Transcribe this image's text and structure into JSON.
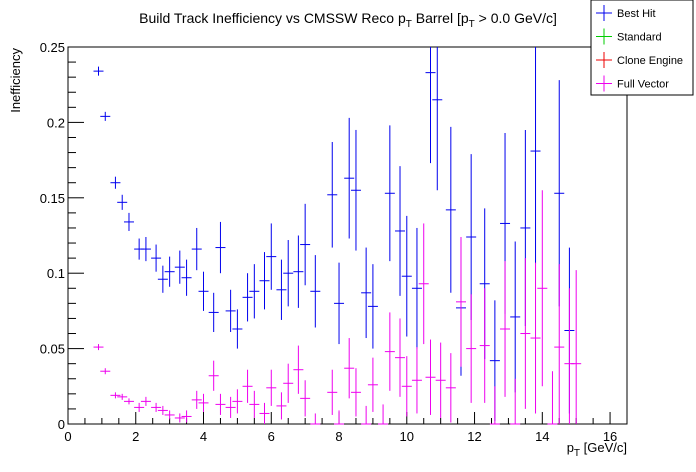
{
  "chart_data": {
    "type": "scatter",
    "title": {
      "main": "Build Track Inefficiency vs CMSSW Reco p",
      "sub1": "T",
      "mid": " Barrel [p",
      "sub2": "T",
      "end": " > 0.0 GeV/c]"
    },
    "xlabel": {
      "main": "p",
      "sub": "T",
      "unit": " [GeV/c]"
    },
    "ylabel": "Inefficiency",
    "xlim": [
      0,
      16.5
    ],
    "ylim": [
      0,
      0.25
    ],
    "xticks": [
      0,
      2,
      4,
      6,
      8,
      10,
      12,
      14,
      16
    ],
    "xtick_labels": [
      "0",
      "2",
      "4",
      "6",
      "8",
      "10",
      "12",
      "14",
      "16"
    ],
    "yticks": [
      0,
      0.05,
      0.1,
      0.15,
      0.2,
      0.25
    ],
    "ytick_labels": [
      "0",
      "0.05",
      "0.1",
      "0.15",
      "0.2",
      "0.25"
    ],
    "legend": [
      {
        "name": "Best Hit",
        "color": "#0000ee"
      },
      {
        "name": "Standard",
        "color": "#00cc00"
      },
      {
        "name": "Clone Engine",
        "color": "#ee0000"
      },
      {
        "name": "Full Vector",
        "color": "#ee00ee"
      }
    ],
    "legend_position": "top-right",
    "series": [
      {
        "name": "Best Hit",
        "color": "#0000ee",
        "points": [
          [
            0.9,
            0.234,
            0.003
          ],
          [
            1.1,
            0.204,
            0.003
          ],
          [
            1.4,
            0.16,
            0.004
          ],
          [
            1.6,
            0.147,
            0.005
          ],
          [
            1.8,
            0.134,
            0.006
          ],
          [
            2.1,
            0.116,
            0.007
          ],
          [
            2.3,
            0.116,
            0.008
          ],
          [
            2.6,
            0.11,
            0.009
          ],
          [
            2.8,
            0.096,
            0.009
          ],
          [
            3.0,
            0.101,
            0.01
          ],
          [
            3.3,
            0.104,
            0.011
          ],
          [
            3.5,
            0.097,
            0.012
          ],
          [
            3.8,
            0.116,
            0.014
          ],
          [
            4.0,
            0.088,
            0.013
          ],
          [
            4.3,
            0.074,
            0.013
          ],
          [
            4.5,
            0.117,
            0.017
          ],
          [
            4.8,
            0.075,
            0.014
          ],
          [
            5.0,
            0.063,
            0.013
          ],
          [
            5.3,
            0.084,
            0.016
          ],
          [
            5.5,
            0.088,
            0.018
          ],
          [
            5.8,
            0.095,
            0.019
          ],
          [
            6.0,
            0.111,
            0.022
          ],
          [
            6.3,
            0.089,
            0.02
          ],
          [
            6.5,
            0.1,
            0.022
          ],
          [
            6.8,
            0.101,
            0.024
          ],
          [
            7.0,
            0.119,
            0.027
          ],
          [
            7.3,
            0.088,
            0.024
          ],
          [
            7.8,
            0.152,
            0.035
          ],
          [
            8.0,
            0.08,
            0.027
          ],
          [
            8.3,
            0.163,
            0.04
          ],
          [
            8.5,
            0.155,
            0.04
          ],
          [
            8.8,
            0.087,
            0.03
          ],
          [
            9.0,
            0.078,
            0.028
          ],
          [
            9.5,
            0.153,
            0.045
          ],
          [
            9.8,
            0.128,
            0.043
          ],
          [
            10.0,
            0.098,
            0.04
          ],
          [
            10.3,
            0.09,
            0.04
          ],
          [
            10.7,
            0.233,
            0.06
          ],
          [
            10.9,
            0.215,
            0.06
          ],
          [
            11.3,
            0.142,
            0.055
          ],
          [
            11.6,
            0.077,
            0.045
          ],
          [
            11.9,
            0.124,
            0.055
          ],
          [
            12.3,
            0.093,
            0.05
          ],
          [
            12.6,
            0.042,
            0.04
          ],
          [
            12.9,
            0.133,
            0.06
          ],
          [
            13.2,
            0.071,
            0.05
          ],
          [
            13.5,
            0.13,
            0.065
          ],
          [
            13.8,
            0.181,
            0.075
          ],
          [
            14.5,
            0.153,
            0.075
          ],
          [
            14.8,
            0.062,
            0.055
          ]
        ]
      },
      {
        "name": "Full Vector",
        "color": "#ee00ee",
        "points": [
          [
            0.9,
            0.051,
            0.002
          ],
          [
            1.1,
            0.035,
            0.002
          ],
          [
            1.4,
            0.019,
            0.002
          ],
          [
            1.6,
            0.018,
            0.002
          ],
          [
            1.8,
            0.015,
            0.002
          ],
          [
            2.1,
            0.011,
            0.003
          ],
          [
            2.3,
            0.015,
            0.003
          ],
          [
            2.6,
            0.011,
            0.003
          ],
          [
            2.8,
            0.009,
            0.003
          ],
          [
            3.0,
            0.006,
            0.003
          ],
          [
            3.3,
            0.004,
            0.003
          ],
          [
            3.5,
            0.005,
            0.004
          ],
          [
            3.8,
            0.016,
            0.006
          ],
          [
            4.0,
            0.014,
            0.006
          ],
          [
            4.3,
            0.032,
            0.01
          ],
          [
            4.5,
            0.013,
            0.007
          ],
          [
            4.8,
            0.011,
            0.007
          ],
          [
            5.0,
            0.015,
            0.008
          ],
          [
            5.3,
            0.025,
            0.011
          ],
          [
            5.5,
            0.013,
            0.009
          ],
          [
            5.8,
            0.007,
            0.007
          ],
          [
            6.0,
            0.024,
            0.012
          ],
          [
            6.3,
            0.012,
            0.009
          ],
          [
            6.5,
            0.027,
            0.013
          ],
          [
            6.8,
            0.036,
            0.016
          ],
          [
            7.0,
            0.017,
            0.012
          ],
          [
            7.3,
            0.0,
            0.007
          ],
          [
            7.8,
            0.021,
            0.015
          ],
          [
            8.0,
            0.0,
            0.009
          ],
          [
            8.3,
            0.037,
            0.02
          ],
          [
            8.5,
            0.021,
            0.016
          ],
          [
            8.8,
            0.0,
            0.012
          ],
          [
            9.0,
            0.026,
            0.018
          ],
          [
            9.3,
            0.0,
            0.013
          ],
          [
            9.5,
            0.048,
            0.026
          ],
          [
            9.8,
            0.044,
            0.026
          ],
          [
            10.0,
            0.025,
            0.02
          ],
          [
            10.3,
            0.029,
            0.022
          ],
          [
            10.5,
            0.093,
            0.04
          ],
          [
            10.7,
            0.031,
            0.025
          ],
          [
            11.0,
            0.029,
            0.025
          ],
          [
            11.3,
            0.024,
            0.023
          ],
          [
            11.6,
            0.081,
            0.043
          ],
          [
            11.9,
            0.05,
            0.036
          ],
          [
            12.3,
            0.052,
            0.038
          ],
          [
            12.6,
            0.0,
            0.025
          ],
          [
            12.9,
            0.063,
            0.045
          ],
          [
            13.2,
            0.0,
            0.03
          ],
          [
            13.5,
            0.06,
            0.05
          ],
          [
            13.8,
            0.057,
            0.05
          ],
          [
            14.0,
            0.09,
            0.065
          ],
          [
            14.3,
            0.0,
            0.035
          ],
          [
            14.5,
            0.051,
            0.055
          ],
          [
            14.8,
            0.04,
            0.05
          ],
          [
            15.0,
            0.04,
            0.062
          ]
        ]
      }
    ]
  }
}
